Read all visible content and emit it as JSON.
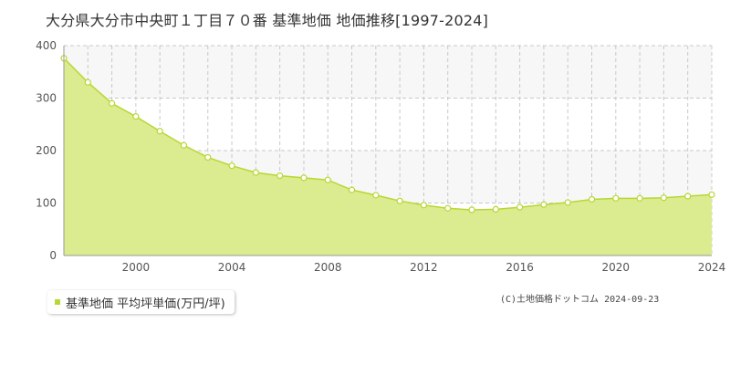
{
  "page": {
    "title": "大分県大分市中央町１丁目７０番 基準地価 地価推移[1997-2024]",
    "copyright": "(C)土地価格ドットコム 2024-09-23"
  },
  "colors": {
    "fill": "#dbeb8f",
    "line": "#b6d832",
    "marker_fill": "#ffffff",
    "marker_stroke": "#b6d832",
    "grid": "#c8c8c8",
    "band": "#f7f7f7"
  },
  "chart_data": {
    "type": "area",
    "title": "大分県大分市中央町１丁目７０番 基準地価 地価推移[1997-2024]",
    "xlabel": "",
    "ylabel": "",
    "xlim": [
      1997,
      2024
    ],
    "ylim": [
      0,
      400
    ],
    "grid": true,
    "legend_position": "bottom-left",
    "x_ticks": [
      2000,
      2004,
      2008,
      2012,
      2016,
      2020,
      2024
    ],
    "y_ticks": [
      0,
      100,
      200,
      300,
      400
    ],
    "series": [
      {
        "name": "基準地価 平均坪単価(万円/坪)",
        "x": [
          1997,
          1998,
          1999,
          2000,
          2001,
          2002,
          2003,
          2004,
          2005,
          2006,
          2007,
          2008,
          2009,
          2010,
          2011,
          2012,
          2013,
          2014,
          2015,
          2016,
          2017,
          2018,
          2019,
          2020,
          2021,
          2022,
          2023,
          2024
        ],
        "values": [
          376,
          330,
          290,
          265,
          237,
          210,
          187,
          171,
          158,
          152,
          148,
          144,
          125,
          115,
          104,
          96,
          90,
          87,
          88,
          92,
          97,
          101,
          107,
          109,
          109,
          110,
          113,
          116
        ]
      }
    ]
  }
}
